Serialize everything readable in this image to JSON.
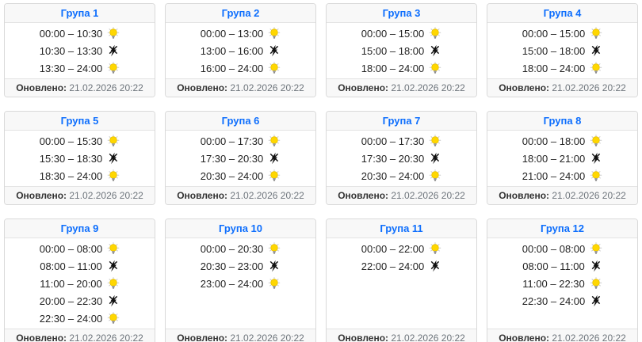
{
  "page": {
    "background": "#ffffff",
    "accent_color": "#0d6efd",
    "bulb_color": "#ffd700",
    "off_icon_color": "#111111"
  },
  "card": {
    "updated_label": "Оновлено:",
    "updated_value": "21.02.2026 20:22"
  },
  "icons": {
    "on": "power-on-bulb-icon",
    "off": "power-off-bolt-icon"
  },
  "groups": [
    {
      "title": "Група 1",
      "slots": [
        {
          "time": "00:00 – 10:30",
          "state": "on"
        },
        {
          "time": "10:30 – 13:30",
          "state": "off"
        },
        {
          "time": "13:30 – 24:00",
          "state": "on"
        }
      ]
    },
    {
      "title": "Група 2",
      "slots": [
        {
          "time": "00:00 – 13:00",
          "state": "on"
        },
        {
          "time": "13:00 – 16:00",
          "state": "off"
        },
        {
          "time": "16:00 – 24:00",
          "state": "on"
        }
      ]
    },
    {
      "title": "Група 3",
      "slots": [
        {
          "time": "00:00 – 15:00",
          "state": "on"
        },
        {
          "time": "15:00 – 18:00",
          "state": "off"
        },
        {
          "time": "18:00 – 24:00",
          "state": "on"
        }
      ]
    },
    {
      "title": "Група 4",
      "slots": [
        {
          "time": "00:00 – 15:00",
          "state": "on"
        },
        {
          "time": "15:00 – 18:00",
          "state": "off"
        },
        {
          "time": "18:00 – 24:00",
          "state": "on"
        }
      ]
    },
    {
      "title": "Група 5",
      "slots": [
        {
          "time": "00:00 – 15:30",
          "state": "on"
        },
        {
          "time": "15:30 – 18:30",
          "state": "off"
        },
        {
          "time": "18:30 – 24:00",
          "state": "on"
        }
      ]
    },
    {
      "title": "Група 6",
      "slots": [
        {
          "time": "00:00 – 17:30",
          "state": "on"
        },
        {
          "time": "17:30 – 20:30",
          "state": "off"
        },
        {
          "time": "20:30 – 24:00",
          "state": "on"
        }
      ]
    },
    {
      "title": "Група 7",
      "slots": [
        {
          "time": "00:00 – 17:30",
          "state": "on"
        },
        {
          "time": "17:30 – 20:30",
          "state": "off"
        },
        {
          "time": "20:30 – 24:00",
          "state": "on"
        }
      ]
    },
    {
      "title": "Група 8",
      "slots": [
        {
          "time": "00:00 – 18:00",
          "state": "on"
        },
        {
          "time": "18:00 – 21:00",
          "state": "off"
        },
        {
          "time": "21:00 – 24:00",
          "state": "on"
        }
      ]
    },
    {
      "title": "Група 9",
      "slots": [
        {
          "time": "00:00 – 08:00",
          "state": "on"
        },
        {
          "time": "08:00 – 11:00",
          "state": "off"
        },
        {
          "time": "11:00 – 20:00",
          "state": "on"
        },
        {
          "time": "20:00 – 22:30",
          "state": "off"
        },
        {
          "time": "22:30 – 24:00",
          "state": "on"
        }
      ]
    },
    {
      "title": "Група 10",
      "slots": [
        {
          "time": "00:00 – 20:30",
          "state": "on"
        },
        {
          "time": "20:30 – 23:00",
          "state": "off"
        },
        {
          "time": "23:00 – 24:00",
          "state": "on"
        }
      ]
    },
    {
      "title": "Група 11",
      "slots": [
        {
          "time": "00:00 – 22:00",
          "state": "on"
        },
        {
          "time": "22:00 – 24:00",
          "state": "off"
        }
      ]
    },
    {
      "title": "Група 12",
      "slots": [
        {
          "time": "00:00 – 08:00",
          "state": "on"
        },
        {
          "time": "08:00 – 11:00",
          "state": "off"
        },
        {
          "time": "11:00 – 22:30",
          "state": "on"
        },
        {
          "time": "22:30 – 24:00",
          "state": "off"
        }
      ]
    }
  ]
}
